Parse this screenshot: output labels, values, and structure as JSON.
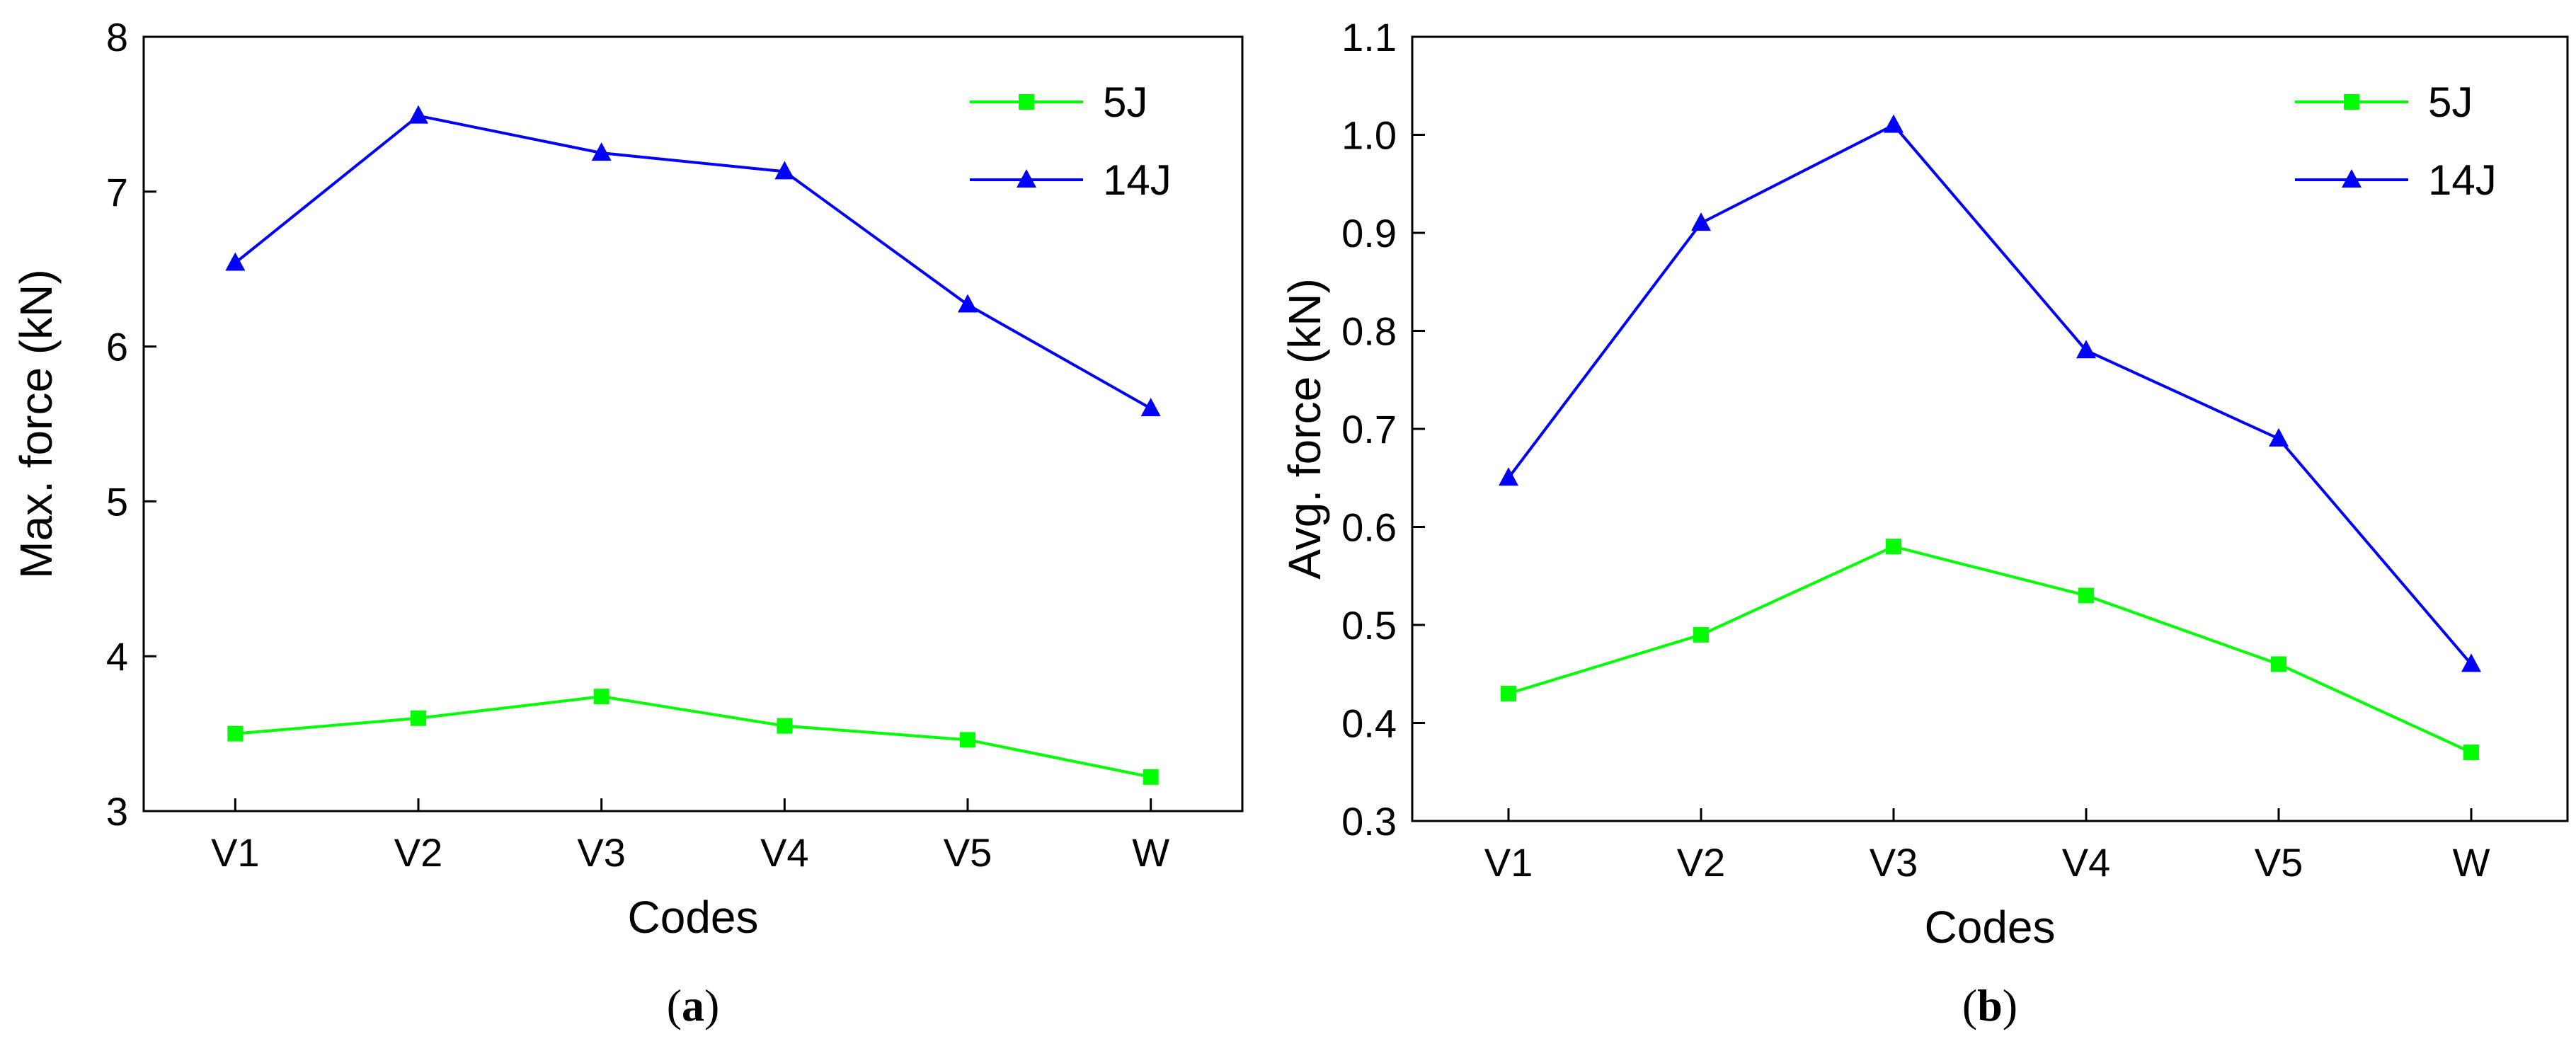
{
  "chart_data": [
    {
      "type": "line",
      "panel": "a",
      "caption": "a",
      "categories": [
        "V1",
        "V2",
        "V3",
        "V4",
        "V5",
        "W"
      ],
      "xlabel": "Codes",
      "ylabel": "Max. force (kN)",
      "ylim": [
        3,
        8
      ],
      "yticks": [
        "3",
        "4",
        "5",
        "6",
        "7",
        "8"
      ],
      "legend_position": "top-right",
      "series": [
        {
          "name": "5J",
          "color": "#00ff00",
          "marker": "square",
          "values": [
            3.5,
            3.6,
            3.74,
            3.55,
            3.46,
            3.22
          ]
        },
        {
          "name": "14J",
          "color": "#0000ff",
          "marker": "triangle",
          "values": [
            6.54,
            7.49,
            7.25,
            7.13,
            6.27,
            5.6
          ]
        }
      ]
    },
    {
      "type": "line",
      "panel": "b",
      "caption": "b",
      "categories": [
        "V1",
        "V2",
        "V3",
        "V4",
        "V5",
        "W"
      ],
      "xlabel": "Codes",
      "ylabel": "Avg. force (kN)",
      "ylim": [
        0.3,
        1.1
      ],
      "yticks": [
        "0.3",
        "0.4",
        "0.5",
        "0.6",
        "0.7",
        "0.8",
        "0.9",
        "1.0",
        "1.1"
      ],
      "legend_position": "top-right",
      "series": [
        {
          "name": "5J",
          "color": "#00ff00",
          "marker": "square",
          "values": [
            0.43,
            0.49,
            0.58,
            0.53,
            0.46,
            0.37
          ]
        },
        {
          "name": "14J",
          "color": "#0000ff",
          "marker": "triangle",
          "values": [
            0.65,
            0.91,
            1.01,
            0.78,
            0.69,
            0.46
          ]
        }
      ]
    }
  ]
}
